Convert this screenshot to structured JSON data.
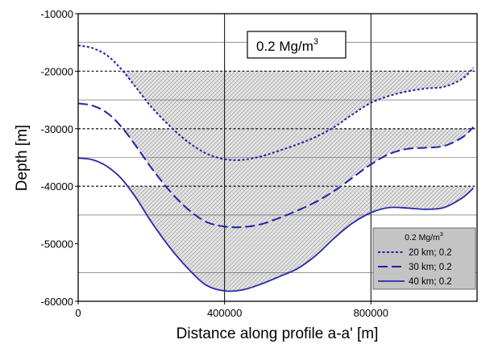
{
  "chart_data": {
    "type": "line",
    "title": "",
    "annotation": {
      "text": "0.2 Mg/m",
      "superscript": "3"
    },
    "xlabel": "Distance along profile a-a'  [m]",
    "ylabel": "Depth [m]",
    "xlim": [
      0,
      1090000
    ],
    "ylim": [
      -60000,
      -10000
    ],
    "xticks": [
      0,
      400000,
      800000
    ],
    "xtick_labels": [
      "0",
      "400000",
      "800000"
    ],
    "yticks": [
      -10000,
      -20000,
      -30000,
      -40000,
      -50000,
      -60000
    ],
    "ytick_labels": [
      "-10000",
      "-20000",
      "-30000",
      "-40000",
      "-50000",
      "-60000"
    ],
    "vertical_gridlines": [
      400000,
      800000
    ],
    "horizontal_gridlines": [
      -15000,
      -25000,
      -35000,
      -45000,
      -55000
    ],
    "reference_levels": [
      -20000,
      -30000,
      -40000
    ],
    "legend": {
      "title": "0.2 Mg/m",
      "title_superscript": "3",
      "position": "bottom-right",
      "entries": [
        "20 km; 0.2",
        "30 km; 0.2",
        "40 km; 0.2"
      ]
    },
    "series": [
      {
        "name": "20 km; 0.2",
        "style": "dotted",
        "reference_depth": -20000,
        "x": [
          0,
          40000,
          80000,
          120000,
          160000,
          200000,
          250000,
          300000,
          350000,
          400000,
          450000,
          500000,
          550000,
          600000,
          650000,
          700000,
          750000,
          800000,
          850000,
          900000,
          950000,
          1000000,
          1050000,
          1080000
        ],
        "y": [
          -15500,
          -16000,
          -17300,
          -19800,
          -23000,
          -26200,
          -29500,
          -32300,
          -34300,
          -35300,
          -35400,
          -34800,
          -33800,
          -32700,
          -31400,
          -29700,
          -27500,
          -25500,
          -24300,
          -23500,
          -23000,
          -22700,
          -21300,
          -19400
        ]
      },
      {
        "name": "30 km; 0.2",
        "style": "dashed",
        "reference_depth": -30000,
        "x": [
          0,
          40000,
          80000,
          120000,
          160000,
          200000,
          250000,
          300000,
          350000,
          400000,
          450000,
          500000,
          550000,
          600000,
          650000,
          700000,
          750000,
          800000,
          850000,
          900000,
          950000,
          1000000,
          1050000,
          1080000
        ],
        "y": [
          -25600,
          -26000,
          -27300,
          -29800,
          -33200,
          -36800,
          -40800,
          -44000,
          -46200,
          -47000,
          -47100,
          -46600,
          -45500,
          -44200,
          -42700,
          -40800,
          -38500,
          -36200,
          -34400,
          -33500,
          -33300,
          -33000,
          -31500,
          -29700
        ]
      },
      {
        "name": "40 km; 0.2",
        "style": "solid",
        "reference_depth": -40000,
        "x": [
          0,
          40000,
          80000,
          120000,
          160000,
          200000,
          250000,
          300000,
          350000,
          400000,
          450000,
          500000,
          550000,
          600000,
          650000,
          700000,
          750000,
          800000,
          850000,
          900000,
          950000,
          1000000,
          1050000,
          1080000
        ],
        "y": [
          -35100,
          -35400,
          -36600,
          -38800,
          -42200,
          -46200,
          -50600,
          -54300,
          -57200,
          -58200,
          -58000,
          -57000,
          -55700,
          -54300,
          -52000,
          -49000,
          -46400,
          -44600,
          -43700,
          -43800,
          -44000,
          -43700,
          -42000,
          -40300
        ]
      }
    ]
  }
}
